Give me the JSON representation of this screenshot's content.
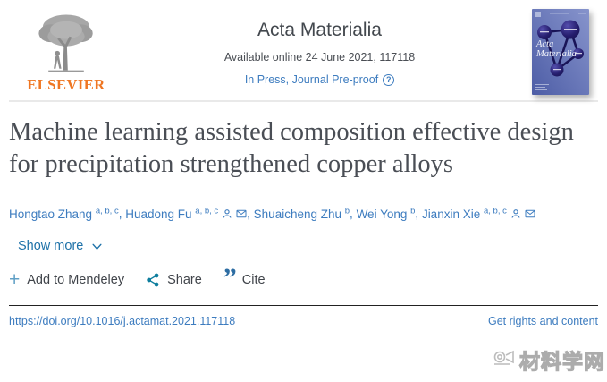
{
  "header": {
    "publisher": "ELSEVIER",
    "journal_title": "Acta Materialia",
    "availability": "Available online 24 June 2021, 117118",
    "status_link": "In Press, Journal Pre-proof",
    "question_glyph": "?",
    "cover": {
      "title_line1": "Acta",
      "title_line2": "Materialia"
    }
  },
  "article": {
    "title": "Machine learning assisted composition effective design for precipitation strengthened copper alloys",
    "authors": [
      {
        "name": "Hongtao Zhang",
        "affiliations": "a, b, c",
        "has_profile": false,
        "has_email": false
      },
      {
        "name": "Huadong Fu",
        "affiliations": "a, b, c",
        "has_profile": true,
        "has_email": true
      },
      {
        "name": "Shuaicheng Zhu",
        "affiliations": "b",
        "has_profile": false,
        "has_email": false
      },
      {
        "name": "Wei Yong",
        "affiliations": "b",
        "has_profile": false,
        "has_email": false
      },
      {
        "name": "Jianxin Xie",
        "affiliations": "a, b, c",
        "has_profile": true,
        "has_email": true
      }
    ],
    "show_more_label": "Show more"
  },
  "actions": {
    "mendeley_label": "Add to Mendeley",
    "plus_glyph": "+",
    "share_label": "Share",
    "cite_label": "Cite",
    "cite_glyph": "”"
  },
  "footer": {
    "doi_link": "https://doi.org/10.1016/j.actamat.2021.117118",
    "rights_link": "Get rights and content"
  },
  "watermark_text": "材料学网",
  "colors": {
    "publisher_orange": "#ef7622",
    "link_blue": "#3d7cbf",
    "show_more_blue": "#1d71a8",
    "share_teal": "#0f7e9e",
    "cite_blue": "#2d6da3",
    "plus_blue": "#5f9fc5",
    "title_gray": "#4a4e55",
    "cover_blue_dark": "#4d5da6",
    "cover_blue_light": "#8794cc",
    "cover_sphere_navy": "#17124e"
  }
}
